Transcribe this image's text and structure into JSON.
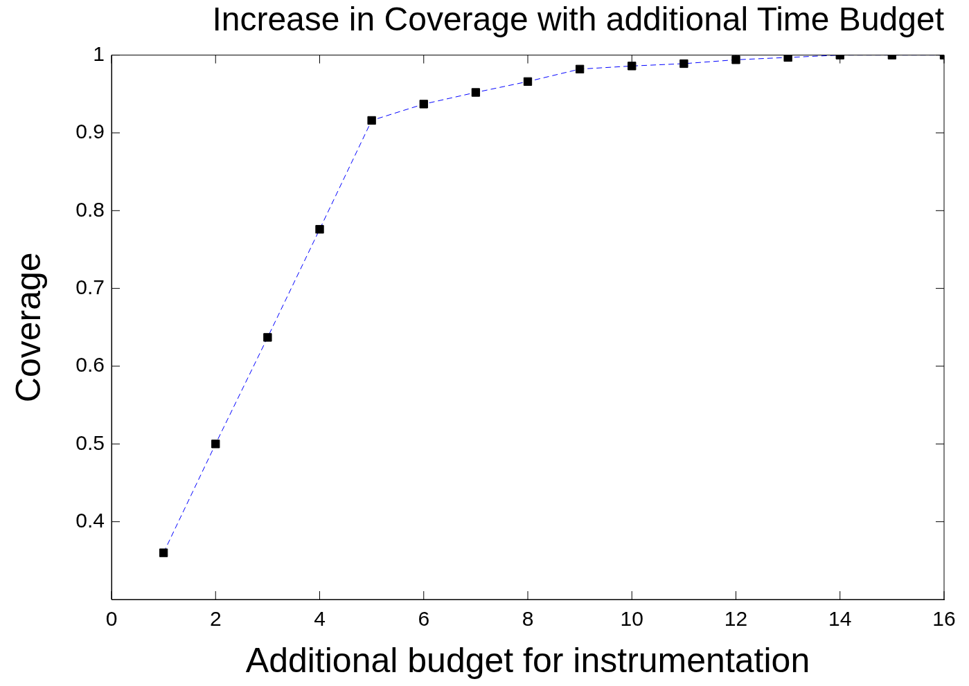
{
  "chart_data": {
    "type": "line",
    "title": "Increase in Coverage with additional Time Budget",
    "xlabel": "Additional budget for instrumentation",
    "ylabel": "Coverage",
    "x": [
      1,
      2,
      3,
      4,
      5,
      6,
      7,
      8,
      9,
      10,
      11,
      12,
      13,
      14,
      15,
      16
    ],
    "series": [
      {
        "color": "#0000ff",
        "colors": [
          "#000000",
          "#000000",
          "#000000",
          "#000000",
          "#000000",
          "#000000",
          "#000000",
          "#000000",
          "#000000",
          "#000000",
          "#000000",
          "#000000",
          "#000000",
          "#000000",
          "#000000",
          "#000000"
        ],
        "values": [
          0.36,
          0.5,
          0.637,
          0.776,
          0.916,
          0.937,
          0.952,
          0.966,
          0.982,
          0.986,
          0.989,
          0.994,
          0.997,
          1,
          1,
          1
        ]
      }
    ],
    "xlim": [
      0,
      16
    ],
    "xticks": [
      0,
      2,
      4,
      6,
      8,
      10,
      12,
      14,
      16
    ],
    "ylim": [
      0.3,
      1
    ],
    "yticks": [
      0.4,
      0.5,
      0.6,
      0.7,
      0.8,
      0.9,
      1
    ],
    "marker": "square",
    "line_style": "dashed"
  }
}
